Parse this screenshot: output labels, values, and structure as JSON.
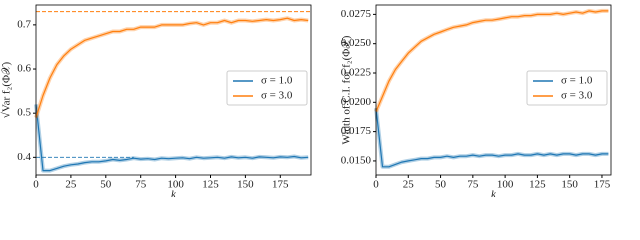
{
  "chart_data": [
    {
      "type": "line",
      "ylabel": "√Var f₂(Φ𝒳)",
      "xlabel": "k",
      "x": [
        0,
        5,
        10,
        15,
        20,
        25,
        30,
        35,
        40,
        45,
        50,
        55,
        60,
        65,
        70,
        75,
        80,
        85,
        90,
        95,
        100,
        105,
        110,
        115,
        120,
        125,
        130,
        135,
        140,
        145,
        150,
        155,
        160,
        165,
        170,
        175,
        180,
        185,
        190,
        195
      ],
      "series": [
        {
          "name": "σ = 1.0",
          "color": "#1f77b4",
          "values": [
            0.52,
            0.37,
            0.37,
            0.375,
            0.38,
            0.383,
            0.385,
            0.388,
            0.39,
            0.39,
            0.392,
            0.395,
            0.393,
            0.395,
            0.398,
            0.396,
            0.397,
            0.395,
            0.398,
            0.397,
            0.398,
            0.399,
            0.397,
            0.4,
            0.398,
            0.399,
            0.4,
            0.398,
            0.401,
            0.399,
            0.4,
            0.398,
            0.401,
            0.4,
            0.399,
            0.401,
            0.4,
            0.402,
            0.399,
            0.4
          ]
        },
        {
          "name": "σ = 3.0",
          "color": "#ff7f0e",
          "values": [
            0.49,
            0.54,
            0.58,
            0.61,
            0.63,
            0.645,
            0.655,
            0.665,
            0.67,
            0.675,
            0.68,
            0.685,
            0.685,
            0.69,
            0.69,
            0.695,
            0.695,
            0.695,
            0.7,
            0.7,
            0.7,
            0.7,
            0.703,
            0.705,
            0.7,
            0.705,
            0.705,
            0.71,
            0.705,
            0.71,
            0.71,
            0.708,
            0.71,
            0.712,
            0.71,
            0.712,
            0.715,
            0.71,
            0.712,
            0.71
          ]
        }
      ],
      "reference_lines": [
        {
          "value": 0.73,
          "color": "#ff7f0e",
          "to": 197
        },
        {
          "value": 0.4,
          "color": "#1f77b4",
          "to": 70
        }
      ],
      "xlim": [
        0,
        197
      ],
      "ylim": [
        0.36,
        0.745
      ],
      "xticks": [
        0,
        25,
        50,
        75,
        100,
        125,
        150,
        175
      ],
      "yticks": [
        0.4,
        0.5,
        0.6,
        0.7
      ],
      "legend": "center right"
    },
    {
      "type": "line",
      "ylabel": "Width of C.I. for f₂(Φ𝒳)",
      "xlabel": "k",
      "x": [
        0,
        5,
        10,
        15,
        20,
        25,
        30,
        35,
        40,
        45,
        50,
        55,
        60,
        65,
        70,
        75,
        80,
        85,
        90,
        95,
        100,
        105,
        110,
        115,
        120,
        125,
        130,
        135,
        140,
        145,
        150,
        155,
        160,
        165,
        170,
        175,
        180
      ],
      "series": [
        {
          "name": "σ = 1.0",
          "color": "#1f77b4",
          "values": [
            0.0195,
            0.0145,
            0.0145,
            0.0147,
            0.0149,
            0.015,
            0.0151,
            0.0152,
            0.0152,
            0.0153,
            0.0153,
            0.0154,
            0.0153,
            0.0154,
            0.0154,
            0.0155,
            0.0154,
            0.0155,
            0.0155,
            0.0154,
            0.0155,
            0.0155,
            0.0156,
            0.0155,
            0.0155,
            0.0156,
            0.0155,
            0.0156,
            0.0155,
            0.0156,
            0.0156,
            0.0155,
            0.0156,
            0.0156,
            0.0155,
            0.0156,
            0.0156
          ]
        },
        {
          "name": "σ = 3.0",
          "color": "#ff7f0e",
          "values": [
            0.0192,
            0.0205,
            0.0218,
            0.0228,
            0.0235,
            0.0242,
            0.0247,
            0.0252,
            0.0255,
            0.0258,
            0.026,
            0.0262,
            0.0264,
            0.0265,
            0.0266,
            0.0268,
            0.0269,
            0.027,
            0.027,
            0.0271,
            0.0272,
            0.0273,
            0.0273,
            0.0274,
            0.0274,
            0.0275,
            0.0275,
            0.0275,
            0.0276,
            0.0275,
            0.0276,
            0.0277,
            0.0276,
            0.0278,
            0.0277,
            0.0278,
            0.0278
          ]
        }
      ],
      "xlim": [
        0,
        182
      ],
      "ylim": [
        0.0138,
        0.0283
      ],
      "xticks": [
        0,
        25,
        50,
        75,
        100,
        125,
        150,
        175
      ],
      "yticks": [
        {
          "value": 0.015,
          "label": "0.0150"
        },
        {
          "value": 0.0175,
          "label": "0.0175"
        },
        {
          "value": 0.02,
          "label": "0.0200"
        },
        {
          "value": 0.0225,
          "label": "0.0225"
        },
        {
          "value": 0.025,
          "label": "0.0250"
        },
        {
          "value": 0.0275,
          "label": "0.0275"
        }
      ],
      "legend": "center right"
    }
  ]
}
